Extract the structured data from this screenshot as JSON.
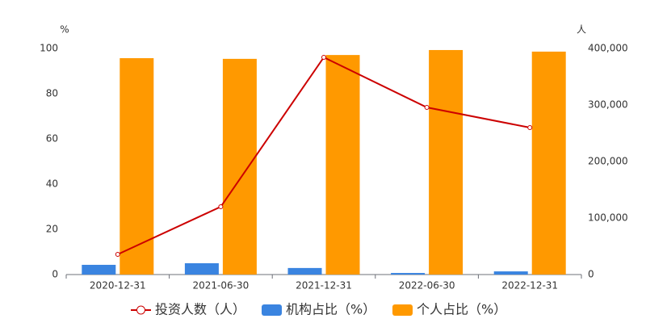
{
  "chart_data": {
    "type": "bar",
    "categories": [
      "2020-12-31",
      "2021-06-30",
      "2021-12-31",
      "2022-06-30",
      "2022-12-31"
    ],
    "series": [
      {
        "name": "投资人数（人）",
        "type": "line",
        "axis": "y2",
        "color": "#cc0000",
        "values": [
          35700,
          120000,
          384300,
          295700,
          260000
        ]
      },
      {
        "name": "机构占比（%）",
        "type": "bar",
        "color": "#3a84e0",
        "values": [
          4.3,
          5.0,
          2.9,
          0.7,
          1.4
        ]
      },
      {
        "name": "个人占比（%）",
        "type": "bar",
        "color": "#ff9900",
        "values": [
          95.7,
          95.4,
          97.1,
          99.3,
          98.6
        ]
      }
    ],
    "y_unit": "%",
    "y2_unit": "人",
    "ylim": [
      0,
      100
    ],
    "yticks": [
      0,
      20,
      40,
      60,
      80,
      100
    ],
    "y2lim": [
      0,
      400000
    ],
    "y2ticks": [
      0,
      {
        "value": 100000,
        "label": "100,000"
      },
      {
        "value": 200000,
        "label": "200,000"
      },
      {
        "value": 300000,
        "label": "300,000"
      },
      {
        "value": 400000,
        "label": "400,000"
      }
    ],
    "grid": false,
    "legend": "bottom"
  }
}
